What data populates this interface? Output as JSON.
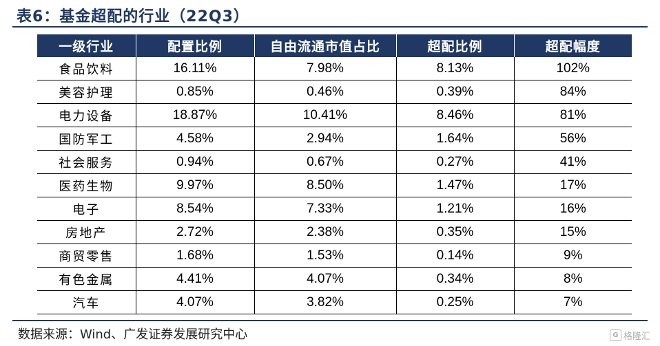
{
  "title": "表6：基金超配的行业（22Q3）",
  "table": {
    "headers": [
      "一级行业",
      "配置比例",
      "自由流通市值占比",
      "超配比例",
      "超配幅度"
    ],
    "rows": [
      [
        "食品饮料",
        "16.11%",
        "7.98%",
        "8.13%",
        "102%"
      ],
      [
        "美容护理",
        "0.85%",
        "0.46%",
        "0.39%",
        "84%"
      ],
      [
        "电力设备",
        "18.87%",
        "10.41%",
        "8.46%",
        "81%"
      ],
      [
        "国防军工",
        "4.58%",
        "2.94%",
        "1.64%",
        "56%"
      ],
      [
        "社会服务",
        "0.94%",
        "0.67%",
        "0.27%",
        "41%"
      ],
      [
        "医药生物",
        "9.97%",
        "8.50%",
        "1.47%",
        "17%"
      ],
      [
        "电子",
        "8.54%",
        "7.33%",
        "1.21%",
        "16%"
      ],
      [
        "房地产",
        "2.72%",
        "2.38%",
        "0.35%",
        "15%"
      ],
      [
        "商贸零售",
        "1.68%",
        "1.53%",
        "0.14%",
        "9%"
      ],
      [
        "有色金属",
        "4.41%",
        "4.07%",
        "0.34%",
        "8%"
      ],
      [
        "汽车",
        "4.07%",
        "3.82%",
        "0.25%",
        "7%"
      ]
    ]
  },
  "source": "数据来源：Wind、广发证券发展研究中心",
  "watermark": {
    "logo": "G",
    "text": "格隆汇"
  }
}
